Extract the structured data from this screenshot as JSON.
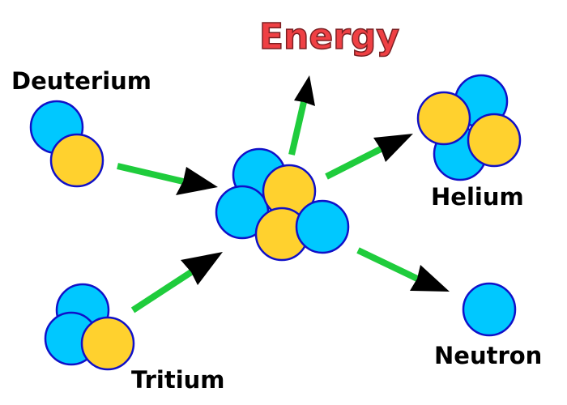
{
  "labels": {
    "deuterium": "Deuterium",
    "tritium": "Tritium",
    "energy": "Energy",
    "helium": "Helium",
    "neutron": "Neutron"
  },
  "colors": {
    "proton": "#ffd12e",
    "neutron": "#00c8ff",
    "outline": "#1010c8",
    "arrow": "#1fcc3c",
    "energy_text": "#ef4044"
  }
}
